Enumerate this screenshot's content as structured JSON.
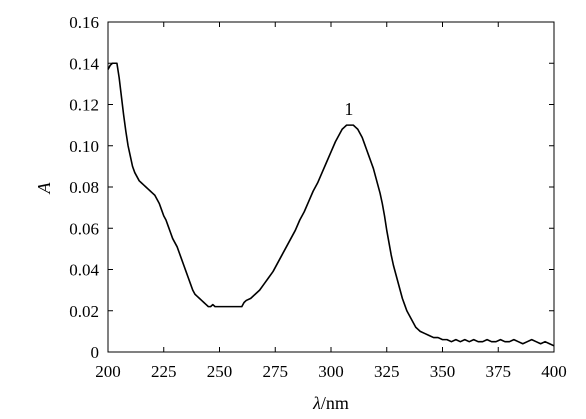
{
  "chart_data": {
    "type": "line",
    "title": "",
    "xlabel_italic": "λ",
    "xlabel_rest": "/nm",
    "ylabel": "A",
    "xlim": [
      200,
      400
    ],
    "ylim": [
      0,
      0.16
    ],
    "x_ticks": [
      "200",
      "225",
      "250",
      "275",
      "300",
      "325",
      "350",
      "375",
      "400"
    ],
    "y_ticks": [
      "0",
      "0.02",
      "0.04",
      "0.06",
      "0.08",
      "0.10",
      "0.12",
      "0.14",
      "0.16"
    ],
    "grid": false,
    "legend": "none",
    "line_color": "#000000",
    "annotations": [
      {
        "text": "1",
        "x": 308,
        "y": 0.112
      }
    ],
    "series": [
      {
        "x": [
          200,
          201,
          202,
          203,
          204,
          205,
          206,
          207,
          208,
          209,
          210,
          211,
          212,
          213,
          214,
          215,
          216,
          217,
          218,
          219,
          220,
          221,
          222,
          223,
          224,
          225,
          226,
          227,
          228,
          229,
          230,
          231,
          232,
          233,
          234,
          235,
          236,
          237,
          238,
          239,
          240,
          241,
          242,
          243,
          244,
          245,
          246,
          247,
          248,
          249,
          250,
          252,
          254,
          256,
          258,
          260,
          261,
          262,
          264,
          266,
          268,
          270,
          272,
          274,
          276,
          278,
          280,
          282,
          284,
          286,
          288,
          290,
          292,
          294,
          296,
          298,
          300,
          302,
          304,
          305,
          306,
          307,
          308,
          309,
          310,
          311,
          312,
          313,
          314,
          315,
          316,
          317,
          318,
          319,
          320,
          321,
          322,
          323,
          324,
          325,
          326,
          327,
          328,
          329,
          330,
          331,
          332,
          333,
          334,
          335,
          336,
          337,
          338,
          339,
          340,
          342,
          344,
          346,
          348,
          350,
          352,
          354,
          356,
          358,
          360,
          362,
          364,
          366,
          368,
          370,
          372,
          374,
          376,
          378,
          380,
          382,
          384,
          386,
          388,
          390,
          392,
          394,
          396,
          398,
          400
        ],
        "values": [
          0.137,
          0.139,
          0.14,
          0.14,
          0.14,
          0.133,
          0.124,
          0.115,
          0.107,
          0.1,
          0.095,
          0.09,
          0.087,
          0.085,
          0.083,
          0.082,
          0.081,
          0.08,
          0.079,
          0.078,
          0.077,
          0.076,
          0.074,
          0.072,
          0.069,
          0.066,
          0.064,
          0.061,
          0.058,
          0.055,
          0.053,
          0.051,
          0.048,
          0.045,
          0.042,
          0.039,
          0.036,
          0.033,
          0.03,
          0.028,
          0.027,
          0.026,
          0.025,
          0.024,
          0.023,
          0.022,
          0.022,
          0.023,
          0.022,
          0.022,
          0.022,
          0.022,
          0.022,
          0.022,
          0.022,
          0.022,
          0.024,
          0.025,
          0.026,
          0.028,
          0.03,
          0.033,
          0.036,
          0.039,
          0.043,
          0.047,
          0.051,
          0.055,
          0.059,
          0.064,
          0.068,
          0.073,
          0.078,
          0.082,
          0.087,
          0.092,
          0.097,
          0.102,
          0.106,
          0.108,
          0.109,
          0.11,
          0.11,
          0.11,
          0.11,
          0.109,
          0.108,
          0.106,
          0.104,
          0.101,
          0.098,
          0.095,
          0.092,
          0.089,
          0.085,
          0.081,
          0.077,
          0.072,
          0.066,
          0.059,
          0.053,
          0.047,
          0.042,
          0.038,
          0.034,
          0.03,
          0.026,
          0.023,
          0.02,
          0.018,
          0.016,
          0.014,
          0.012,
          0.011,
          0.01,
          0.009,
          0.008,
          0.007,
          0.007,
          0.006,
          0.006,
          0.005,
          0.006,
          0.005,
          0.006,
          0.005,
          0.006,
          0.005,
          0.005,
          0.006,
          0.005,
          0.005,
          0.006,
          0.005,
          0.005,
          0.006,
          0.005,
          0.004,
          0.005,
          0.006,
          0.005,
          0.004,
          0.005,
          0.004,
          0.003
        ]
      }
    ]
  }
}
